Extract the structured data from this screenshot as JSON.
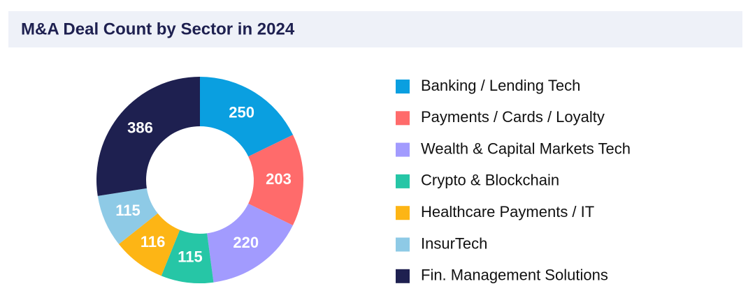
{
  "chart_data": {
    "type": "pie",
    "title": "M&A Deal Count by Sector in 2024",
    "categories": [
      "Banking / Lending Tech",
      "Payments / Cards / Loyalty",
      "Wealth & Capital Markets Tech",
      "Crypto & Blockchain",
      "Healthcare Payments / IT",
      "InsurTech",
      "Fin. Management Solutions"
    ],
    "values": [
      250,
      203,
      220,
      115,
      116,
      115,
      386
    ],
    "colors": [
      "#0a9fe0",
      "#ff6b6b",
      "#a29bfe",
      "#26c6a6",
      "#fdb515",
      "#8ecae6",
      "#1e2050"
    ],
    "donut": true,
    "legend": "right"
  }
}
